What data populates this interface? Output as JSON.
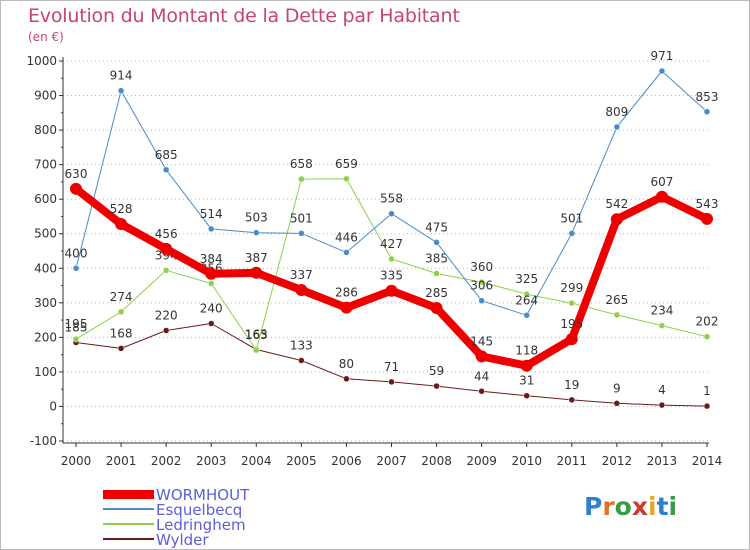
{
  "header": {
    "title": "Evolution du Montant de la Dette par Habitant",
    "unit": "(en €)"
  },
  "colors": {
    "title": "#c8437a",
    "grid": "#e8a0b8",
    "legend_text": "#5a60d8"
  },
  "logo": {
    "text": "Proxiti",
    "letters": [
      {
        "ch": "P",
        "color": "#2f7fd0"
      },
      {
        "ch": "r",
        "color": "#e2702a"
      },
      {
        "ch": "o",
        "color": "#3a9b46"
      },
      {
        "ch": "x",
        "color": "#d03a2a"
      },
      {
        "ch": "i",
        "color": "#e2a62a"
      },
      {
        "ch": "t",
        "color": "#2f7fd0"
      },
      {
        "ch": "i",
        "color": "#3a9b46"
      }
    ]
  },
  "chart_data": {
    "type": "line",
    "x": [
      "2000",
      "2001",
      "2002",
      "2003",
      "2004",
      "2005",
      "2006",
      "2007",
      "2008",
      "2009",
      "2010",
      "2011",
      "2012",
      "2013",
      "2014"
    ],
    "ylim": [
      -100,
      1000
    ],
    "yticks": [
      -100,
      0,
      100,
      200,
      300,
      400,
      500,
      600,
      700,
      800,
      900,
      1000
    ],
    "grid": "horizontal dotted",
    "legend_position": "bottom-left",
    "series": [
      {
        "name": "Wylder",
        "color": "#6b1a1a",
        "width": 1,
        "values": [
          185,
          168,
          220,
          240,
          165,
          133,
          80,
          71,
          59,
          44,
          31,
          19,
          9,
          4,
          1
        ],
        "labels": [
          "185",
          "168",
          "220",
          "240",
          "165",
          "133",
          "80",
          "71",
          "59",
          "44",
          "31",
          "19",
          "9",
          "4",
          "1"
        ]
      },
      {
        "name": "Ledringhem",
        "color": "#8ed04a",
        "width": 1,
        "values": [
          195,
          274,
          394,
          356,
          163,
          658,
          659,
          427,
          385,
          360,
          325,
          299,
          265,
          234,
          202
        ],
        "labels": [
          "195",
          "274",
          "394",
          "356",
          "163",
          "658",
          "659",
          "427",
          "385",
          "360",
          "325",
          "299",
          "265",
          "234",
          "202"
        ]
      },
      {
        "name": "Esquelbecq",
        "color": "#4a8cc8",
        "width": 1,
        "values": [
          400,
          914,
          685,
          514,
          503,
          501,
          446,
          558,
          475,
          306,
          264,
          501,
          809,
          971,
          853
        ],
        "labels": [
          "400",
          "914",
          "685",
          "514",
          "503",
          "501",
          "446",
          "558",
          "475",
          "306",
          "264",
          "501",
          "809",
          "971",
          "853"
        ]
      },
      {
        "name": "WORMHOUT",
        "color": "#ee0000",
        "width": 8,
        "values": [
          630,
          528,
          456,
          384,
          387,
          337,
          286,
          335,
          285,
          145,
          118,
          195,
          542,
          607,
          543
        ],
        "labels": [
          "630",
          "528",
          "456",
          "384",
          "387",
          "337",
          "286",
          "335",
          "285",
          "145",
          "118",
          "195",
          "542",
          "607",
          "543"
        ]
      }
    ],
    "legend": [
      "WORMHOUT",
      "Esquelbecq",
      "Ledringhem",
      "Wylder"
    ]
  }
}
